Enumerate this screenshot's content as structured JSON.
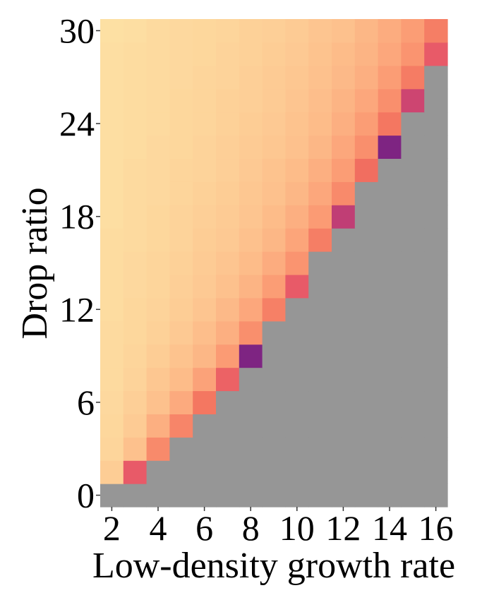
{
  "chart_data": {
    "type": "heatmap",
    "xlabel": "Low-density growth rate",
    "ylabel": "Drop ratio",
    "x_values": [
      2,
      3,
      4,
      5,
      6,
      7,
      8,
      9,
      10,
      11,
      12,
      13,
      14,
      15,
      16
    ],
    "y_values": [
      0,
      1.5,
      3,
      4.5,
      6,
      7.5,
      9,
      10.5,
      12,
      13.5,
      15,
      16.5,
      18,
      19.5,
      21,
      22.5,
      24,
      25.5,
      27,
      28.5,
      30
    ],
    "x_ticks": [
      "2",
      "4",
      "6",
      "8",
      "10",
      "12",
      "14",
      "16"
    ],
    "y_ticks": [
      "0",
      "6",
      "12",
      "18",
      "24",
      "30"
    ],
    "xlim": [
      1.5,
      16.5
    ],
    "ylim": [
      -0.75,
      30.75
    ],
    "grid": false,
    "legend": "none",
    "value_scale": "0 = lightest (pale yellow) to 1 = darkest (purple); gray = not applicable",
    "na_color": "#969696",
    "colormap": [
      "#fde4a6",
      "#fdc48f",
      "#fb9a73",
      "#f3725f",
      "#e4516b",
      "#9b2b7e",
      "#7e2482"
    ],
    "values": [
      [
        null,
        null,
        null,
        null,
        null,
        null,
        null,
        null,
        null,
        null,
        null,
        null,
        null,
        null,
        null
      ],
      [
        0.12,
        0.62,
        null,
        null,
        null,
        null,
        null,
        null,
        null,
        null,
        null,
        null,
        null,
        null,
        null
      ],
      [
        0.08,
        0.18,
        0.4,
        null,
        null,
        null,
        null,
        null,
        null,
        null,
        null,
        null,
        null,
        null,
        null
      ],
      [
        0.07,
        0.13,
        0.25,
        0.42,
        null,
        null,
        null,
        null,
        null,
        null,
        null,
        null,
        null,
        null,
        null
      ],
      [
        0.06,
        0.11,
        0.18,
        0.27,
        0.48,
        null,
        null,
        null,
        null,
        null,
        null,
        null,
        null,
        null,
        null
      ],
      [
        0.05,
        0.09,
        0.15,
        0.2,
        0.3,
        0.58,
        null,
        null,
        null,
        null,
        null,
        null,
        null,
        null,
        null
      ],
      [
        0.05,
        0.08,
        0.12,
        0.17,
        0.22,
        0.33,
        1.0,
        null,
        null,
        null,
        null,
        null,
        null,
        null,
        null
      ],
      [
        0.05,
        0.07,
        0.1,
        0.14,
        0.19,
        0.25,
        0.38,
        null,
        null,
        null,
        null,
        null,
        null,
        null,
        null
      ],
      [
        0.04,
        0.07,
        0.09,
        0.12,
        0.16,
        0.21,
        0.28,
        0.44,
        null,
        null,
        null,
        null,
        null,
        null,
        null
      ],
      [
        0.04,
        0.06,
        0.08,
        0.11,
        0.14,
        0.18,
        0.23,
        0.32,
        0.62,
        null,
        null,
        null,
        null,
        null,
        null
      ],
      [
        0.04,
        0.06,
        0.08,
        0.1,
        0.13,
        0.16,
        0.2,
        0.26,
        0.36,
        null,
        null,
        null,
        null,
        null,
        null
      ],
      [
        0.04,
        0.05,
        0.07,
        0.09,
        0.12,
        0.14,
        0.18,
        0.22,
        0.29,
        0.45,
        null,
        null,
        null,
        null,
        null
      ],
      [
        0.03,
        0.05,
        0.07,
        0.09,
        0.11,
        0.13,
        0.16,
        0.2,
        0.25,
        0.33,
        0.75,
        null,
        null,
        null,
        null
      ],
      [
        0.03,
        0.05,
        0.06,
        0.08,
        0.1,
        0.12,
        0.15,
        0.18,
        0.22,
        0.28,
        0.4,
        null,
        null,
        null,
        null
      ],
      [
        0.03,
        0.05,
        0.06,
        0.08,
        0.09,
        0.11,
        0.14,
        0.17,
        0.2,
        0.25,
        0.32,
        0.52,
        null,
        null,
        null
      ],
      [
        0.03,
        0.04,
        0.06,
        0.07,
        0.09,
        0.11,
        0.13,
        0.15,
        0.18,
        0.22,
        0.28,
        0.38,
        1.0,
        null,
        null
      ],
      [
        0.03,
        0.04,
        0.05,
        0.07,
        0.08,
        0.1,
        0.12,
        0.14,
        0.17,
        0.2,
        0.25,
        0.32,
        0.48,
        null,
        null
      ],
      [
        0.03,
        0.04,
        0.05,
        0.07,
        0.08,
        0.1,
        0.11,
        0.13,
        0.16,
        0.19,
        0.23,
        0.28,
        0.38,
        0.72,
        null
      ],
      [
        0.03,
        0.04,
        0.05,
        0.06,
        0.08,
        0.09,
        0.11,
        0.13,
        0.15,
        0.18,
        0.21,
        0.25,
        0.32,
        0.46,
        null
      ],
      [
        0.03,
        0.04,
        0.05,
        0.06,
        0.07,
        0.09,
        0.1,
        0.12,
        0.14,
        0.17,
        0.2,
        0.23,
        0.28,
        0.36,
        0.62
      ],
      [
        0.02,
        0.03,
        0.05,
        0.06,
        0.07,
        0.08,
        0.1,
        0.11,
        0.13,
        0.16,
        0.18,
        0.22,
        0.26,
        0.32,
        0.45
      ]
    ]
  }
}
